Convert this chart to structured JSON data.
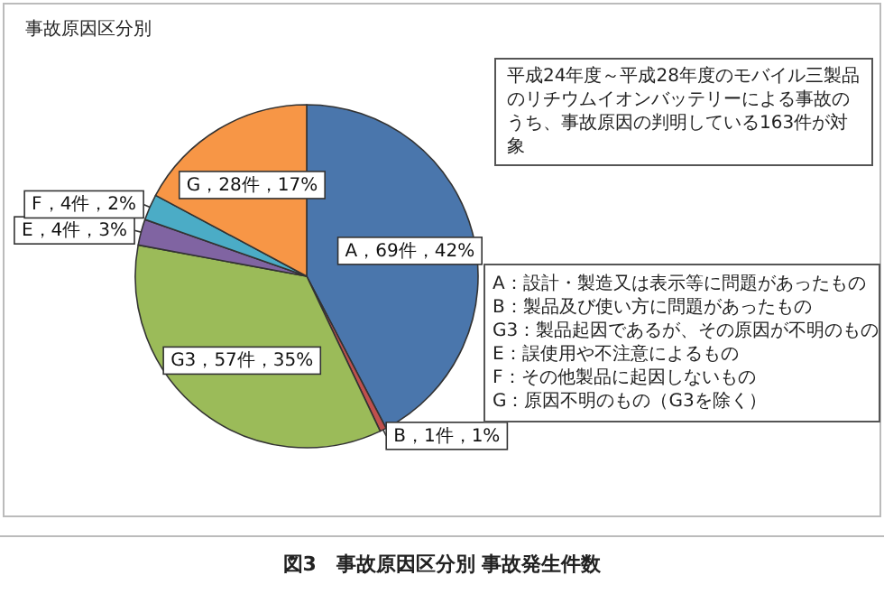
{
  "chart_data": {
    "type": "pie",
    "title": "事故原因区分別",
    "categories": [
      "A",
      "B",
      "G3",
      "E",
      "F",
      "G"
    ],
    "values": [
      69,
      1,
      57,
      4,
      4,
      28
    ],
    "colors": [
      "#4a76ac",
      "#c0504d",
      "#9bbb59",
      "#8064a2",
      "#4bacc6",
      "#f79646"
    ],
    "value_labels": [
      "，69件，42%",
      "，1件，1%",
      "，57件，35%",
      "，4件，3%",
      "，4件，2%",
      "，28件，17%"
    ],
    "annotations": [
      "平成24年度～平成28年度のモバイル三製品のリチウムイオンバッテリーによる事故のうち、事故原因の判明している163件が対象",
      "A：設計・製造又は表示等に問題があったもの",
      "B：製品及び使い方に問題があったもの",
      "G3：製品起因であるが、その原因が不明のもの",
      "E：誤使用や不注意によるもの",
      "F：その他製品に起因しないもの",
      "G：原因不明のもの（G3を除く）",
      "図3　事故原因区分別 事故発生件数"
    ]
  }
}
